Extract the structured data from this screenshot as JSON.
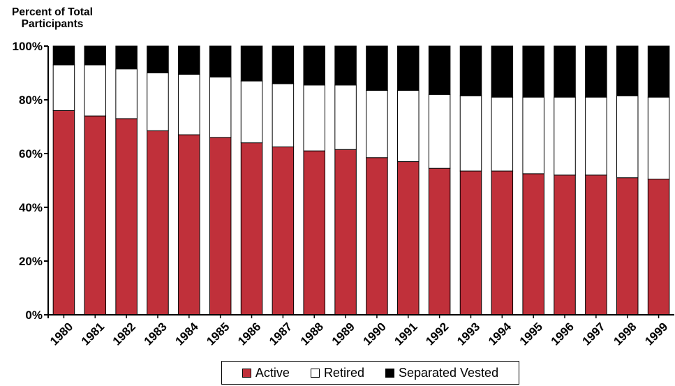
{
  "chart_data": {
    "type": "bar",
    "stacked": true,
    "title": "",
    "ylabel_lines": [
      "Percent of Total",
      "Participants"
    ],
    "xlabel": "",
    "ylim": [
      0,
      100
    ],
    "yticks": [
      0,
      20,
      40,
      60,
      80,
      100
    ],
    "ytick_labels": [
      "0%",
      "20%",
      "40%",
      "60%",
      "80%",
      "100%"
    ],
    "grid": false,
    "legend_position": "bottom-center",
    "categories": [
      "1980",
      "1981",
      "1982",
      "1983",
      "1984",
      "1985",
      "1986",
      "1987",
      "1988",
      "1989",
      "1990",
      "1991",
      "1992",
      "1993",
      "1994",
      "1995",
      "1996",
      "1997",
      "1998",
      "1999"
    ],
    "series": [
      {
        "name": "Active",
        "color": "#C0303A",
        "values": [
          76,
          74,
          73,
          68.5,
          67,
          66,
          64,
          62.5,
          61,
          61.5,
          58.5,
          57,
          54.5,
          53.5,
          53.5,
          52.5,
          52,
          52,
          51,
          50.5
        ]
      },
      {
        "name": "Retired",
        "color": "#FFFFFF",
        "values": [
          17,
          19,
          18.5,
          21.5,
          22.5,
          22.5,
          23,
          23.5,
          24.5,
          24,
          25,
          26.5,
          27.5,
          28,
          27.5,
          28.5,
          29,
          29,
          30.5,
          30.5
        ]
      },
      {
        "name": "Separated Vested",
        "color": "#000000",
        "values": [
          7,
          7,
          8.5,
          10,
          10.5,
          11.5,
          13,
          14,
          14.5,
          14.5,
          16.5,
          16.5,
          18,
          18.5,
          19,
          19,
          19,
          19,
          18.5,
          19
        ]
      }
    ]
  }
}
